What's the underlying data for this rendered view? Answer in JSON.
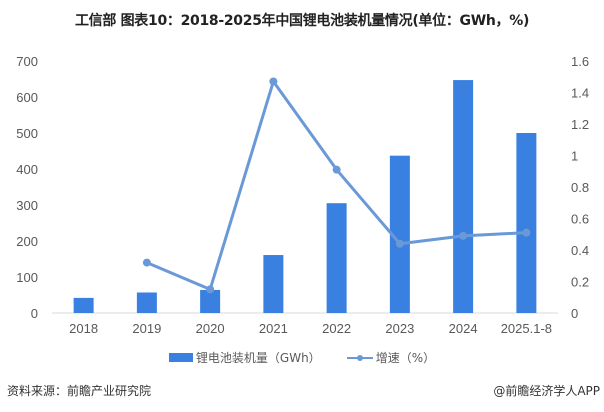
{
  "chart_data": {
    "type": "bar+line",
    "title": "工信部 图表10：2018-2025年中国锂电池装机量情况(单位：GWh，%)",
    "categories": [
      "2018",
      "2019",
      "2020",
      "2021",
      "2022",
      "2023",
      "2024",
      "2025.1-8"
    ],
    "series": [
      {
        "name": "锂电池装机量（GWh）",
        "type": "bar",
        "axis": "left",
        "color": "#3a80e0",
        "values": [
          42,
          57,
          64,
          161,
          305,
          437,
          647,
          500
        ]
      },
      {
        "name": "增速（%）",
        "type": "line",
        "axis": "right",
        "color": "#6a99d8",
        "values": [
          null,
          0.32,
          0.15,
          1.47,
          0.91,
          0.44,
          0.49,
          0.51
        ]
      }
    ],
    "ylim_left": [
      0,
      700
    ],
    "yticks_left": [
      "0",
      "100",
      "200",
      "300",
      "400",
      "500",
      "600",
      "700"
    ],
    "ylim_right": [
      0,
      1.6
    ],
    "yticks_right": [
      "0",
      "0.2",
      "0.4",
      "0.6",
      "0.8",
      "1",
      "1.2",
      "1.4",
      "1.6"
    ],
    "grid": false,
    "legend_position": "bottom"
  },
  "footer": {
    "source": "资料来源：前瞻产业研究院",
    "credit": "@前瞻经济学人APP"
  }
}
